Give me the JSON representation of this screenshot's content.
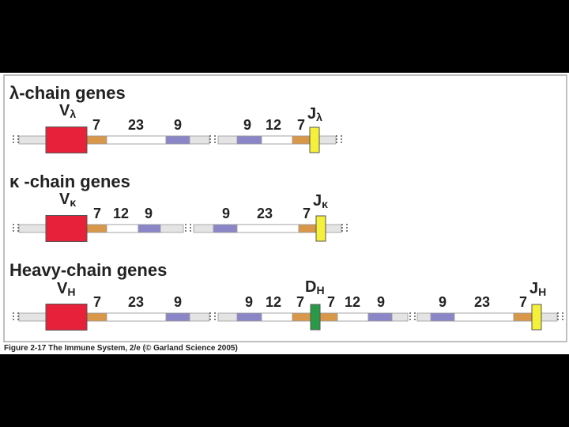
{
  "sections": [
    {
      "title": "λ-chain genes",
      "v": {
        "main": "V",
        "sub": "λ"
      },
      "j": {
        "main": "J",
        "sub": "λ"
      },
      "spacers": [
        "7",
        "23",
        "9",
        "9",
        "12",
        "7"
      ]
    },
    {
      "title": "κ -chain genes",
      "v": {
        "main": "V",
        "sub": "κ"
      },
      "j": {
        "main": "J",
        "sub": "κ"
      },
      "spacers": [
        "7",
        "12",
        "9",
        "9",
        "23",
        "7"
      ]
    },
    {
      "title": "Heavy-chain genes",
      "v": {
        "main": "V",
        "sub": "H"
      },
      "d": {
        "main": "D",
        "sub": "H"
      },
      "j": {
        "main": "J",
        "sub": "H"
      },
      "spacers": [
        "7",
        "23",
        "9",
        "9",
        "12",
        "7",
        "7",
        "12",
        "9",
        "9",
        "23",
        "7"
      ]
    }
  ],
  "caption": "Figure 2-17 The Immune System, 2/e (© Garland Science 2005)"
}
